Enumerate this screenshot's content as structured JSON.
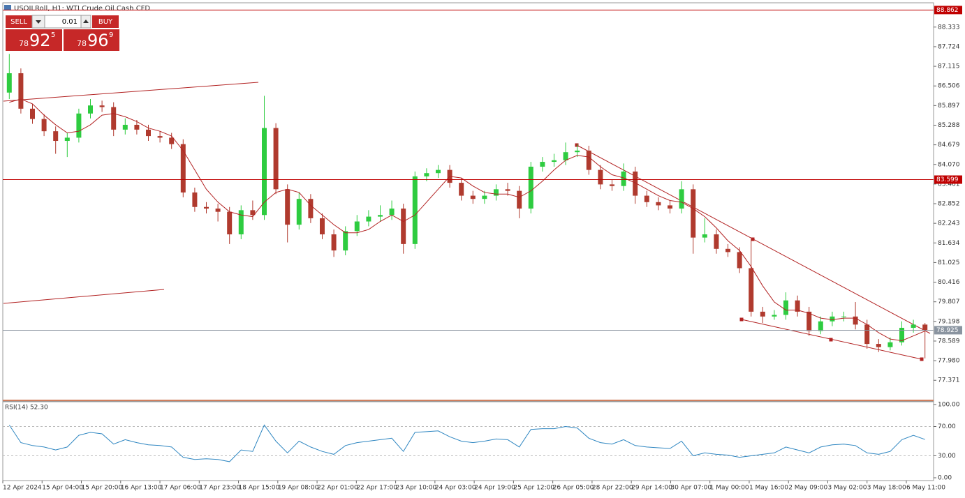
{
  "chart_data": {
    "type": "candlestick",
    "title": "USOILRoll, H1: WTI Crude Oil Cash CFD",
    "up_color": "#2ecc40",
    "down_color": "#b03a2e",
    "open": [
      86.3,
      86.9,
      85.8,
      85.48,
      85.1,
      84.8,
      84.9,
      85.65,
      85.9,
      85.85,
      85.15,
      85.3,
      85.15,
      84.95,
      84.9,
      84.7,
      83.2,
      82.75,
      82.7,
      82.6,
      81.9,
      82.65,
      82.5,
      85.2,
      83.3,
      82.2,
      83.0,
      82.4,
      81.9,
      81.4,
      82.0,
      82.3,
      82.45,
      82.5,
      82.7,
      81.6,
      83.7,
      83.8,
      83.9,
      83.5,
      83.1,
      83.0,
      83.1,
      83.3,
      83.25,
      82.7,
      84.0,
      84.15,
      84.2,
      84.45,
      84.5,
      83.9,
      83.45,
      83.4,
      83.85,
      83.1,
      82.9,
      82.8,
      82.7,
      83.3,
      81.8,
      81.9,
      81.45,
      81.35,
      80.85,
      79.5,
      79.35,
      79.4,
      79.85,
      79.5,
      78.9,
      79.2,
      79.35,
      79.35,
      79.1,
      78.5,
      78.4,
      78.55,
      79.0,
      79.1
    ],
    "high": [
      87.5,
      87.05,
      85.95,
      85.63,
      85.25,
      85.05,
      85.8,
      86.1,
      86.05,
      86.0,
      85.5,
      85.45,
      85.3,
      85.1,
      85.05,
      84.85,
      83.35,
      82.9,
      82.85,
      82.75,
      82.8,
      82.95,
      86.2,
      85.35,
      83.45,
      83.2,
      83.15,
      82.55,
      82.05,
      82.15,
      82.5,
      82.65,
      82.8,
      82.95,
      82.85,
      83.85,
      83.95,
      84.05,
      84.05,
      83.65,
      83.25,
      83.25,
      83.45,
      83.5,
      83.4,
      84.15,
      84.3,
      84.4,
      84.75,
      84.7,
      84.65,
      84.05,
      83.6,
      84.1,
      84.0,
      83.25,
      83.05,
      82.95,
      83.55,
      83.45,
      82.4,
      82.05,
      81.6,
      81.5,
      81.75,
      79.65,
      79.55,
      80.1,
      80.0,
      79.65,
      79.35,
      79.5,
      79.5,
      79.8,
      79.25,
      78.65,
      78.7,
      79.2,
      79.25,
      79.15
    ],
    "low": [
      86.1,
      85.65,
      85.33,
      84.95,
      84.4,
      84.3,
      84.75,
      85.5,
      85.7,
      84.95,
      85.0,
      85.0,
      84.8,
      84.75,
      84.55,
      83.05,
      82.6,
      82.55,
      82.3,
      81.6,
      81.75,
      82.35,
      82.35,
      83.15,
      81.65,
      82.05,
      82.25,
      81.75,
      81.2,
      81.25,
      81.85,
      82.15,
      82.3,
      82.35,
      81.3,
      81.45,
      83.55,
      83.65,
      83.35,
      82.95,
      82.85,
      82.85,
      82.95,
      83.1,
      82.4,
      82.55,
      83.85,
      84.0,
      84.05,
      84.3,
      83.75,
      83.3,
      83.25,
      83.25,
      82.85,
      82.75,
      82.65,
      82.55,
      82.55,
      81.3,
      81.65,
      81.3,
      81.2,
      80.7,
      79.35,
      79.15,
      79.25,
      79.25,
      79.35,
      78.75,
      78.8,
      79.05,
      79.2,
      78.95,
      78.35,
      78.25,
      78.3,
      78.45,
      78.85,
      78.05
    ],
    "close": [
      86.9,
      85.8,
      85.48,
      85.1,
      84.8,
      84.9,
      85.65,
      85.9,
      85.85,
      85.15,
      85.3,
      85.15,
      84.95,
      84.9,
      84.7,
      83.2,
      82.75,
      82.7,
      82.6,
      81.9,
      82.65,
      82.5,
      85.2,
      83.3,
      82.2,
      83.0,
      82.4,
      81.9,
      81.4,
      82.0,
      82.3,
      82.45,
      82.5,
      82.7,
      81.6,
      83.7,
      83.8,
      83.9,
      83.5,
      83.1,
      83.0,
      83.1,
      83.3,
      83.25,
      82.7,
      84.0,
      84.15,
      84.2,
      84.45,
      84.5,
      83.9,
      83.45,
      83.4,
      83.85,
      83.1,
      82.9,
      82.8,
      82.7,
      83.3,
      81.8,
      81.9,
      81.45,
      81.35,
      80.85,
      79.5,
      79.35,
      79.4,
      79.85,
      79.5,
      78.9,
      79.2,
      79.35,
      79.35,
      79.1,
      78.5,
      78.4,
      78.55,
      79.0,
      79.1,
      78.93
    ],
    "ma": {
      "color": "#b22222",
      "values": [
        86.0,
        86.1,
        85.95,
        85.6,
        85.3,
        85.05,
        85.1,
        85.3,
        85.6,
        85.65,
        85.55,
        85.4,
        85.2,
        85.1,
        84.95,
        84.5,
        83.9,
        83.3,
        82.9,
        82.6,
        82.5,
        82.45,
        82.9,
        83.2,
        83.3,
        83.2,
        82.8,
        82.5,
        82.2,
        81.95,
        81.95,
        82.05,
        82.3,
        82.5,
        82.3,
        82.5,
        82.9,
        83.3,
        83.7,
        83.65,
        83.4,
        83.2,
        83.15,
        83.15,
        83.05,
        83.25,
        83.55,
        83.9,
        84.2,
        84.35,
        84.3,
        84.0,
        83.75,
        83.65,
        83.5,
        83.3,
        83.1,
        82.95,
        82.9,
        82.7,
        82.45,
        82.1,
        81.7,
        81.4,
        80.9,
        80.3,
        79.8,
        79.55,
        79.55,
        79.45,
        79.3,
        79.25,
        79.3,
        79.3,
        79.1,
        78.85,
        78.65,
        78.6,
        78.75,
        78.9
      ]
    },
    "ylim": [
      76.77,
      88.87
    ],
    "yticks": [
      88.333,
      87.724,
      87.115,
      86.506,
      85.897,
      85.288,
      84.679,
      {
        "value": 84.07,
        "label": "84.070"
      },
      83.461,
      82.852,
      82.243,
      81.634,
      81.025,
      80.416,
      79.807,
      79.198,
      78.589,
      {
        "value": 77.98,
        "label": "77.980"
      },
      77.371
    ],
    "hlines": [
      {
        "value": 88.862,
        "color": "#c00000"
      },
      {
        "value": 83.599,
        "color": "#c00000"
      },
      {
        "value": 78.925,
        "color": "#8a94a0"
      }
    ],
    "x_labels": [
      "12 Apr 2024",
      "15 Apr 04:00",
      "15 Apr 20:00",
      "16 Apr 13:00",
      "17 Apr 06:00",
      "17 Apr 23:00",
      "18 Apr 15:00",
      "19 Apr 08:00",
      "22 Apr 01:00",
      "22 Apr 17:00",
      "23 Apr 10:00",
      "24 Apr 03:00",
      "24 Apr 19:00",
      "25 Apr 12:00",
      "26 Apr 05:00",
      "28 Apr 22:00",
      "29 Apr 14:00",
      "30 Apr 07:00",
      "1 May 00:00",
      "1 May 16:00",
      "2 May 09:00",
      "3 May 02:00",
      "3 May 18:00",
      "6 May 11:00"
    ],
    "rsi": {
      "label": "RSI(14) 52.30",
      "color": "#2e86c1",
      "values": [
        72,
        48,
        44,
        42,
        38,
        42,
        58,
        62,
        60,
        46,
        52,
        48,
        45,
        44,
        42,
        28,
        25,
        26,
        25,
        22,
        38,
        36,
        72,
        50,
        34,
        50,
        42,
        36,
        32,
        44,
        48,
        50,
        52,
        54,
        36,
        62,
        63,
        64,
        56,
        50,
        48,
        50,
        53,
        52,
        42,
        66,
        67,
        67,
        70,
        68,
        54,
        48,
        46,
        52,
        44,
        42,
        41,
        40,
        50,
        30,
        34,
        32,
        31,
        28,
        30,
        32,
        34,
        42,
        38,
        34,
        42,
        45,
        46,
        44,
        34,
        32,
        36,
        52,
        58,
        52.3
      ],
      "ylim": [
        0,
        100
      ],
      "yticks": [
        {
          "value": 100,
          "label": "100.00"
        },
        {
          "value": 70,
          "label": "70.00"
        },
        {
          "value": 30,
          "label": "30.00"
        },
        {
          "value": 0,
          "label": "0.00"
        }
      ]
    }
  },
  "trade_panel": {
    "sell": "SELL",
    "buy": "BUY",
    "lot": "0.01",
    "bid": {
      "small": "78",
      "big": "92",
      "sup": "5"
    },
    "ask": {
      "small": "78",
      "big": "96",
      "sup": "9"
    }
  }
}
